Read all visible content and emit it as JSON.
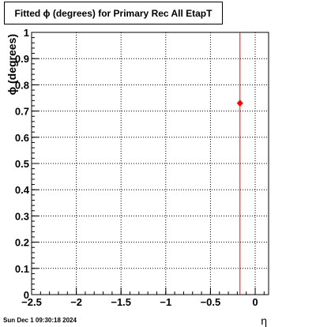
{
  "chart_data": {
    "type": "scatter",
    "title": "Fitted ϕ (degrees) for Primary Rec All EtapT",
    "xlabel": "η",
    "ylabel": "ϕ (degrees)",
    "xlim": [
      -2.5,
      0.15
    ],
    "ylim": [
      0,
      1
    ],
    "x_ticks": [
      "−2.5",
      "−2",
      "−1.5",
      "−1",
      "−0.5",
      "0"
    ],
    "x_tick_values": [
      -2.5,
      -2,
      -1.5,
      -1,
      -0.5,
      0
    ],
    "y_ticks": [
      "0",
      "0.1",
      "0.2",
      "0.3",
      "0.4",
      "0.5",
      "0.6",
      "0.7",
      "0.8",
      "0.9",
      "1"
    ],
    "y_tick_values": [
      0,
      0.1,
      0.2,
      0.3,
      0.4,
      0.5,
      0.6,
      0.7,
      0.8,
      0.9,
      1
    ],
    "grid": true,
    "points": [
      {
        "x": -0.17,
        "y": 0.73
      }
    ],
    "vertical_line": {
      "x": -0.17
    },
    "marker_color": "#ff0000",
    "line_color": "#ff0000"
  },
  "footer": {
    "timestamp": "Sun Dec  1 09:30:18 2024"
  }
}
